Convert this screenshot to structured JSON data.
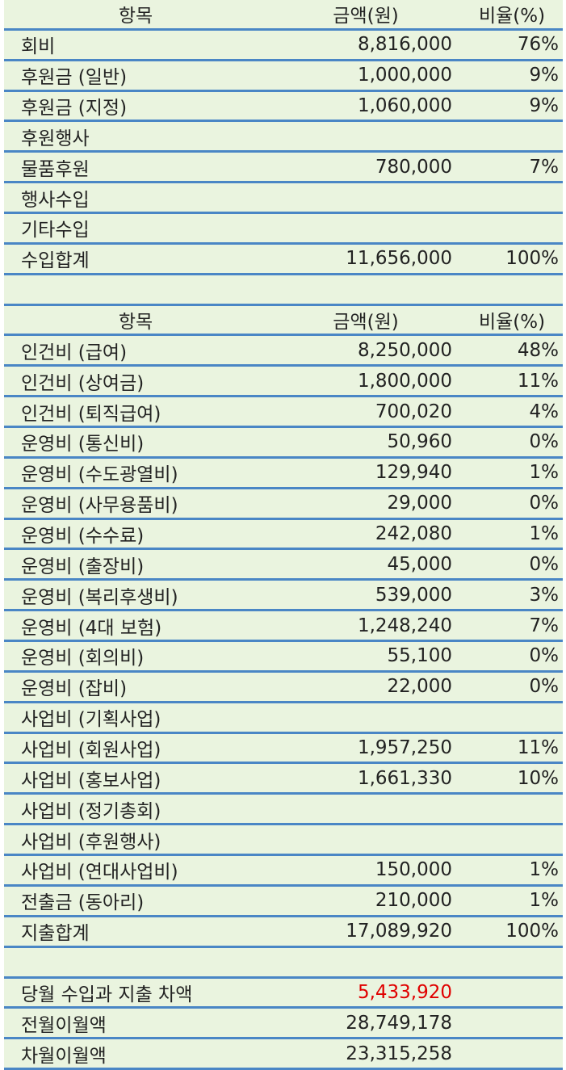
{
  "income": {
    "header": {
      "item": "항목",
      "amount": "금액(원)",
      "ratio": "비율(%)"
    },
    "rows": [
      {
        "label": "회비",
        "amount": "8,816,000",
        "ratio": "76%"
      },
      {
        "label": "후원금 (일반)",
        "amount": "1,000,000",
        "ratio": "9%"
      },
      {
        "label": "후원금 (지정)",
        "amount": "1,060,000",
        "ratio": "9%"
      },
      {
        "label": "후원행사"
      },
      {
        "label": "물품후원",
        "amount": "780,000",
        "ratio": "7%"
      },
      {
        "label": "행사수입"
      },
      {
        "label": "기타수입"
      },
      {
        "label": "수입합계",
        "amount": "11,656,000",
        "ratio": "100%"
      }
    ]
  },
  "expense": {
    "header": {
      "item": "항목",
      "amount": "금액(원)",
      "ratio": "비율(%)"
    },
    "rows": [
      {
        "label": "인건비 (급여)",
        "amount": "8,250,000",
        "ratio": "48%"
      },
      {
        "label": "인건비 (상여금)",
        "amount": "1,800,000",
        "ratio": "11%"
      },
      {
        "label": "인건비 (퇴직급여)",
        "amount": "700,020",
        "ratio": "4%"
      },
      {
        "label": "운영비 (통신비)",
        "amount": "50,960",
        "ratio": "0%"
      },
      {
        "label": "운영비 (수도광열비)",
        "amount": "129,940",
        "ratio": "1%"
      },
      {
        "label": "운영비 (사무용품비)",
        "amount": "29,000",
        "ratio": "0%"
      },
      {
        "label": "운영비 (수수료)",
        "amount": "242,080",
        "ratio": "1%"
      },
      {
        "label": "운영비 (출장비)",
        "amount": "45,000",
        "ratio": "0%"
      },
      {
        "label": "운영비 (복리후생비)",
        "amount": "539,000",
        "ratio": "3%"
      },
      {
        "label": "운영비 (4대 보험)",
        "amount": "1,248,240",
        "ratio": "7%"
      },
      {
        "label": "운영비 (회의비)",
        "amount": "55,100",
        "ratio": "0%"
      },
      {
        "label": "운영비 (잡비)",
        "amount": "22,000",
        "ratio": "0%"
      },
      {
        "label": "사업비 (기획사업)"
      },
      {
        "label": "사업비 (회원사업)",
        "amount": "1,957,250",
        "ratio": "11%"
      },
      {
        "label": "사업비 (홍보사업)",
        "amount": "1,661,330",
        "ratio": "10%"
      },
      {
        "label": "사업비 (정기총회)"
      },
      {
        "label": "사업비 (후원행사)"
      },
      {
        "label": "사업비 (연대사업비)",
        "amount": "150,000",
        "ratio": "1%"
      },
      {
        "label": "전출금 (동아리)",
        "amount": "210,000",
        "ratio": "1%"
      },
      {
        "label": "지출합계",
        "amount": "17,089,920",
        "ratio": "100%"
      }
    ]
  },
  "summary": {
    "rows": [
      {
        "label": "당월 수입과 지출 차액",
        "amount": "5,433,920",
        "color": "#e00000"
      },
      {
        "label": "전월이월액",
        "amount": "28,749,178"
      },
      {
        "label": "차월이월액",
        "amount": "23,315,258"
      }
    ]
  }
}
